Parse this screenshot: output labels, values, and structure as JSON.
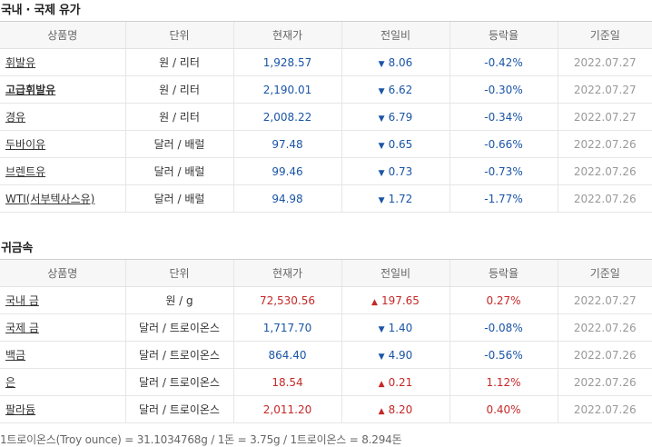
{
  "oil": {
    "title": "국내 · 국제 유가",
    "headers": [
      "상품명",
      "단위",
      "현재가",
      "전일비",
      "등락율",
      "기준일"
    ],
    "rows": [
      {
        "name": "휘발유",
        "unit": "원 / 리터",
        "price": "1,928.57",
        "dir": "down",
        "change": "8.06",
        "rate": "-0.42%",
        "date": "2022.07.27",
        "bold": false
      },
      {
        "name": "고급휘발유",
        "unit": "원 / 리터",
        "price": "2,190.01",
        "dir": "down",
        "change": "6.62",
        "rate": "-0.30%",
        "date": "2022.07.27",
        "bold": true
      },
      {
        "name": "경유",
        "unit": "원 / 리터",
        "price": "2,008.22",
        "dir": "down",
        "change": "6.79",
        "rate": "-0.34%",
        "date": "2022.07.27",
        "bold": false
      },
      {
        "name": "두바이유",
        "unit": "달러 / 배럴",
        "price": "97.48",
        "dir": "down",
        "change": "0.65",
        "rate": "-0.66%",
        "date": "2022.07.26",
        "bold": false
      },
      {
        "name": "브렌트유",
        "unit": "달러 / 배럴",
        "price": "99.46",
        "dir": "down",
        "change": "0.73",
        "rate": "-0.73%",
        "date": "2022.07.26",
        "bold": false
      },
      {
        "name": "WTI(서부텍사스유)",
        "unit": "달러 / 배럴",
        "price": "94.98",
        "dir": "down",
        "change": "1.72",
        "rate": "-1.77%",
        "date": "2022.07.26",
        "bold": false
      }
    ]
  },
  "metal": {
    "title": "귀금속",
    "headers": [
      "상품명",
      "단위",
      "현재가",
      "전일비",
      "등락율",
      "기준일"
    ],
    "rows": [
      {
        "name": "국내 금",
        "unit": "원 / g",
        "price": "72,530.56",
        "dir": "up",
        "change": "197.65",
        "rate": "0.27%",
        "date": "2022.07.27",
        "bold": false
      },
      {
        "name": "국제 금",
        "unit": "달러 / 트로이온스",
        "price": "1,717.70",
        "dir": "down",
        "change": "1.40",
        "rate": "-0.08%",
        "date": "2022.07.26",
        "bold": false
      },
      {
        "name": "백금",
        "unit": "달러 / 트로이온스",
        "price": "864.40",
        "dir": "down",
        "change": "4.90",
        "rate": "-0.56%",
        "date": "2022.07.26",
        "bold": false
      },
      {
        "name": "은",
        "unit": "달러 / 트로이온스",
        "price": "18.54",
        "dir": "up",
        "change": "0.21",
        "rate": "1.12%",
        "date": "2022.07.26",
        "bold": false
      },
      {
        "name": "팔라듐",
        "unit": "달러 / 트로이온스",
        "price": "2,011.20",
        "dir": "up",
        "change": "8.20",
        "rate": "0.40%",
        "date": "2022.07.26",
        "bold": false
      }
    ]
  },
  "footnote": "1트로이온스(Troy ounce) = 31.1034768g / 1돈 = 3.75g / 1트로이온스 = 8.294돈",
  "colors": {
    "up": "#c62828",
    "down": "#1a55a6"
  },
  "icons": {
    "up": "triangle-up-icon",
    "down": "triangle-down-icon"
  }
}
